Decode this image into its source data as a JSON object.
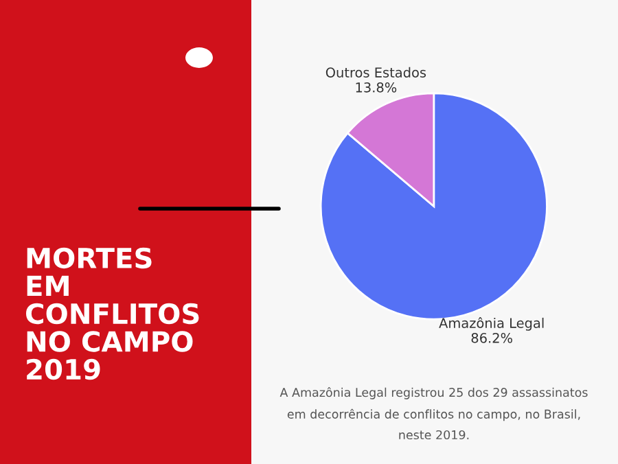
{
  "chart_data": {
    "type": "pie",
    "title": "MORTES\nEM\nCONFLITOS\nNO CAMPO\n2019",
    "categories": [
      "Amazônia Legal",
      "Outros Estados"
    ],
    "values": [
      86.2,
      13.8
    ],
    "value_labels": [
      "86.2%",
      "13.8%"
    ],
    "colors": [
      "#5571f5",
      "#d477d6"
    ],
    "annotations": [
      "A Amazônia Legal registrou 25 dos 29 assassinatos\nem decorrência de conflitos no campo, no Brasil,\nneste 2019."
    ]
  }
}
